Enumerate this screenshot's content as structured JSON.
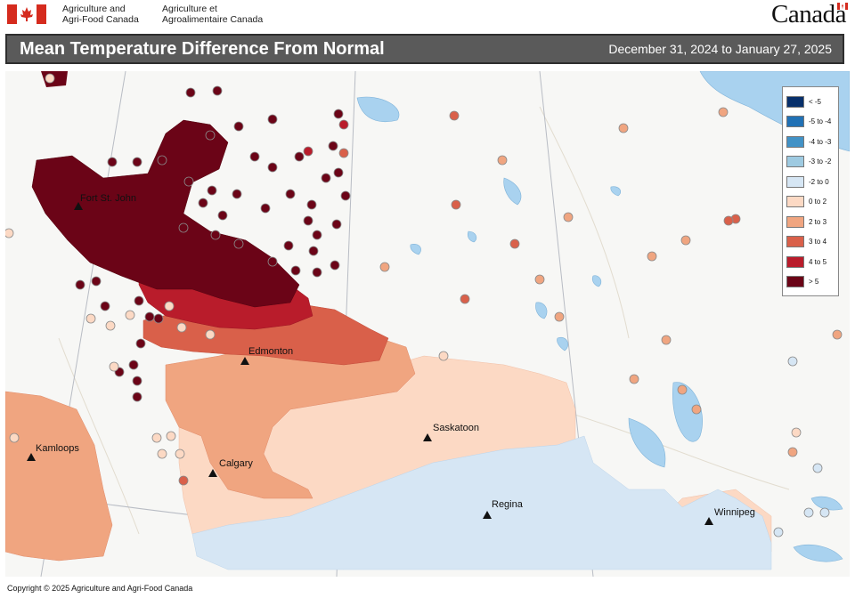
{
  "header": {
    "dept_en": "Agriculture and\nAgri-Food Canada",
    "dept_fr": "Agriculture et\nAgroalimentaire Canada",
    "wordmark": "Canada"
  },
  "map": {
    "title": "Mean Temperature Difference From Normal",
    "dates": "December 31, 2024 to January 27, 2025"
  },
  "legend": [
    {
      "label": "< -5",
      "color": "#08306b"
    },
    {
      "label": "-5 to -4",
      "color": "#2171b5"
    },
    {
      "label": "-4 to -3",
      "color": "#4292c6"
    },
    {
      "label": "-3 to -2",
      "color": "#9ecae1"
    },
    {
      "label": "-2 to 0",
      "color": "#d6e6f4"
    },
    {
      "label": "0 to 2",
      "color": "#fcd9c4"
    },
    {
      "label": "2 to 3",
      "color": "#f0a580"
    },
    {
      "label": "3 to 4",
      "color": "#d9604a"
    },
    {
      "label": "4 to 5",
      "color": "#b91c2b"
    },
    {
      "label": "> 5",
      "color": "#6b0417"
    }
  ],
  "cities": [
    {
      "name": "Fort St. John"
    },
    {
      "name": "Edmonton"
    },
    {
      "name": "Saskatoon"
    },
    {
      "name": "Kamloops"
    },
    {
      "name": "Calgary"
    },
    {
      "name": "Regina"
    },
    {
      "name": "Winnipeg"
    }
  ],
  "colors": {
    "water": "#a9d2ef",
    "land": "#f7f7f5",
    "title_bar": "#5a5a5a",
    "flag_red": "#d52b1e"
  },
  "copyright": "Copyright © 2025 Agriculture and Agri-Food Canada"
}
